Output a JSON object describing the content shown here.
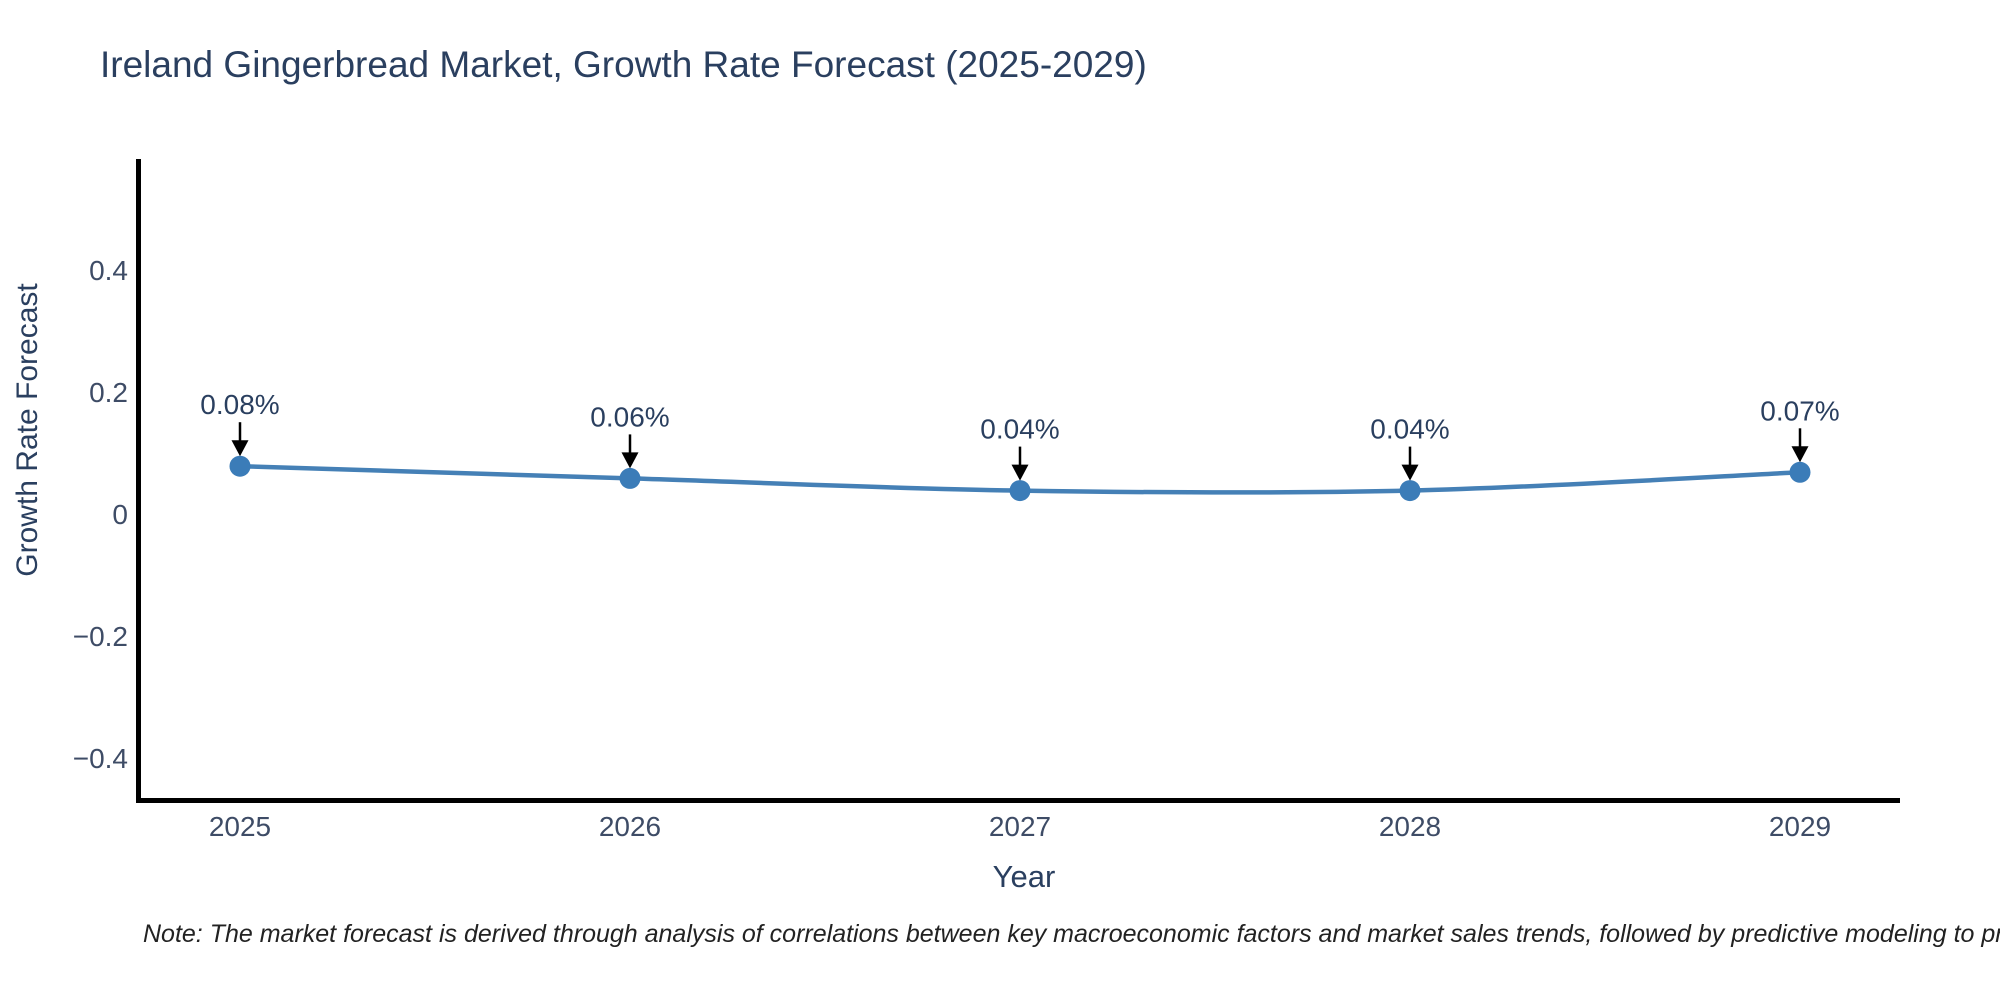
{
  "title": "Ireland Gingerbread Market, Growth Rate Forecast (2025-2029)",
  "note": "Note: The market forecast is derived through analysis of correlations between key macroeconomic factors and market sales trends, followed by predictive modeling to project future sa",
  "chart_data": {
    "type": "line",
    "title": "Ireland Gingerbread Market, Growth Rate Forecast (2025-2029)",
    "xlabel": "Year",
    "ylabel": "Growth Rate Forecast",
    "categories": [
      "2025",
      "2026",
      "2027",
      "2028",
      "2029"
    ],
    "series": [
      {
        "name": "Growth Rate Forecast",
        "values": [
          0.08,
          0.06,
          0.04,
          0.04,
          0.07
        ]
      }
    ],
    "point_labels": [
      "0.08%",
      "0.06%",
      "0.04%",
      "0.04%",
      "0.07%"
    ],
    "ytick_labels": [
      "0.4",
      "0.2",
      "0",
      "−0.2",
      "−0.4"
    ],
    "ytick_values": [
      0.4,
      0.2,
      0,
      -0.2,
      -0.4
    ],
    "ylim": [
      -0.47,
      0.58
    ],
    "grid": false,
    "legend": "none",
    "annotation_style": "value label with down arrow to point",
    "colors": {
      "line": "#4580b6",
      "marker": "#3b7cb8",
      "axis": "#000000",
      "title_text": "#2a3f5f",
      "tick_text": "#3e4c66",
      "arrow": "#000000",
      "background": "#ffffff"
    }
  }
}
